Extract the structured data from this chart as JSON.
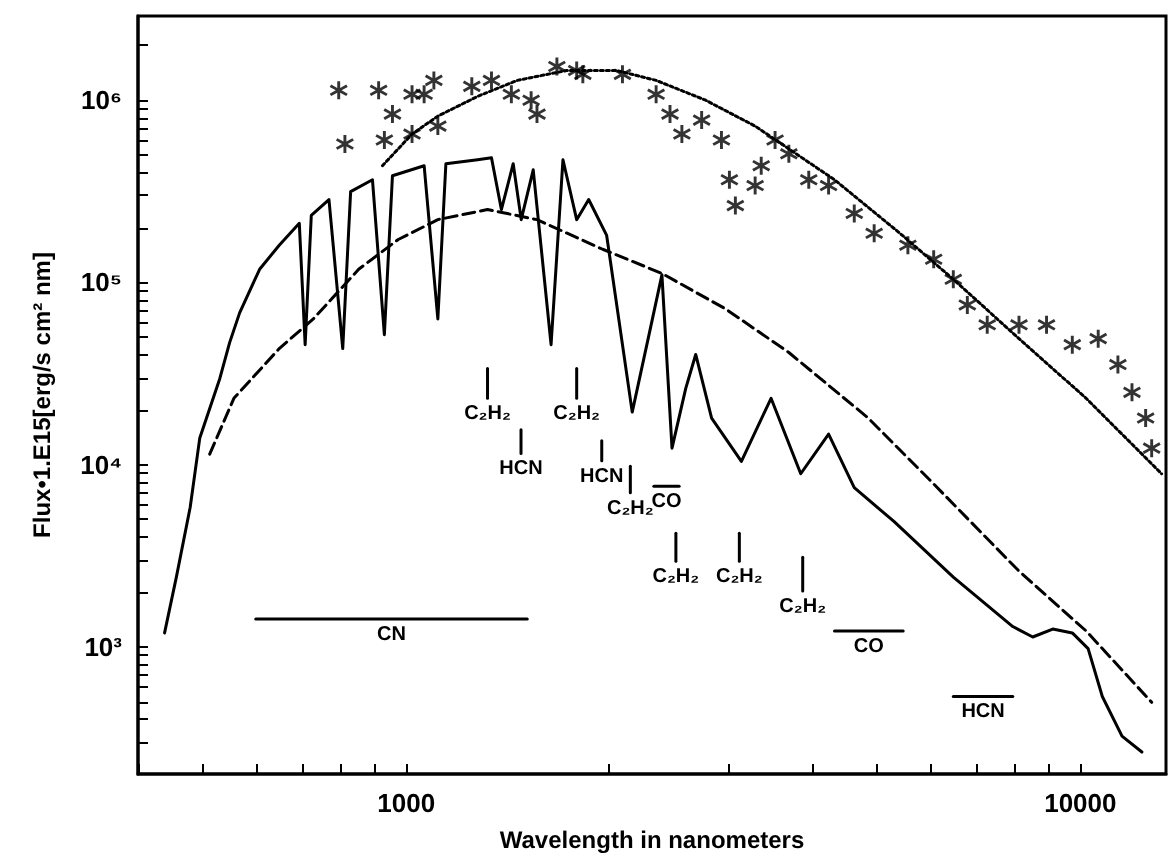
{
  "chart_data": {
    "type": "line",
    "xlabel": "Wavelength in nanometers",
    "ylabel": "Flux•1.E15[erg/s cm² nm]",
    "log": "xy",
    "grid": false,
    "legend": false,
    "xlim": [
      400,
      13400
    ],
    "ylim": [
      200,
      2900000
    ],
    "xticks": [
      {
        "value": 400,
        "label": null
      },
      {
        "value": 500,
        "label": null
      },
      {
        "value": 600,
        "label": null
      },
      {
        "value": 700,
        "label": null
      },
      {
        "value": 800,
        "label": null
      },
      {
        "value": 900,
        "label": null
      },
      1000,
      {
        "value": 2000,
        "label": null
      },
      {
        "value": 3000,
        "label": null
      },
      {
        "value": 4000,
        "label": null
      },
      {
        "value": 5000,
        "label": null
      },
      {
        "value": 6000,
        "label": null
      },
      {
        "value": 7000,
        "label": null
      },
      {
        "value": 8000,
        "label": null
      },
      {
        "value": 9000,
        "label": null
      },
      10000
    ],
    "yticks": [
      {
        "value": 300,
        "label": null
      },
      {
        "value": 400,
        "label": null
      },
      {
        "value": 500,
        "label": null
      },
      {
        "value": 600,
        "label": null
      },
      {
        "value": 700,
        "label": null
      },
      {
        "value": 800,
        "label": null
      },
      {
        "value": 900,
        "label": null
      },
      {
        "value": 1000,
        "label": "10³"
      },
      {
        "value": 2000,
        "label": null
      },
      {
        "value": 3000,
        "label": null
      },
      {
        "value": 4000,
        "label": null
      },
      {
        "value": 5000,
        "label": null
      },
      {
        "value": 6000,
        "label": null
      },
      {
        "value": 7000,
        "label": null
      },
      {
        "value": 8000,
        "label": null
      },
      {
        "value": 9000,
        "label": null
      },
      {
        "value": 10000,
        "label": "10⁴"
      },
      {
        "value": 20000,
        "label": null
      },
      {
        "value": 30000,
        "label": null
      },
      {
        "value": 40000,
        "label": null
      },
      {
        "value": 50000,
        "label": null
      },
      {
        "value": 60000,
        "label": null
      },
      {
        "value": 70000,
        "label": null
      },
      {
        "value": 80000,
        "label": null
      },
      {
        "value": 90000,
        "label": null
      },
      {
        "value": 100000,
        "label": "10⁵"
      },
      {
        "value": 200000,
        "label": null
      },
      {
        "value": 300000,
        "label": null
      },
      {
        "value": 400000,
        "label": null
      },
      {
        "value": 500000,
        "label": null
      },
      {
        "value": 600000,
        "label": null
      },
      {
        "value": 700000,
        "label": null
      },
      {
        "value": 800000,
        "label": null
      },
      {
        "value": 900000,
        "label": null
      },
      {
        "value": 1000000,
        "label": "10⁶"
      },
      {
        "value": 2000000,
        "label": null
      }
    ],
    "series": [
      {
        "color": "#000000",
        "line_style": "solid",
        "marker": "none",
        "x": [
          438,
          456,
          478,
          494,
          529,
          547,
          566,
          606,
          648,
          694,
          708,
          723,
          768,
          805,
          827,
          891,
          928,
          954,
          1063,
          1114,
          1145,
          1276,
          1338,
          1384,
          1441,
          1481,
          1543,
          1640,
          1708,
          1790,
          1865,
          1983,
          2164,
          2285,
          2395,
          2479,
          2598,
          2688,
          2838,
          3142,
          3477,
          3848,
          4232,
          4620,
          5290,
          6480,
          7940,
          8500,
          9100,
          9730,
          10270,
          10780,
          11530,
          12340
        ],
        "values": [
          1190,
          2410,
          5810,
          14000,
          29700,
          46700,
          68000,
          118000,
          160000,
          211000,
          45500,
          233000,
          285000,
          43300,
          315000,
          366000,
          51600,
          385000,
          437000,
          63000,
          448000,
          471000,
          483000,
          251000,
          448000,
          221000,
          415000,
          45500,
          471000,
          221000,
          285000,
          181000,
          19400,
          49100,
          110000,
          12300,
          26200,
          40200,
          18000,
          10400,
          23100,
          8900,
          14700,
          7460,
          4870,
          2410,
          1290,
          1130,
          1250,
          1190,
          975,
          533,
          323,
          264
        ]
      },
      {
        "color": "#000000",
        "line_style": "dashed",
        "marker": "none",
        "x": [
          511,
          555,
          648,
          728,
          850,
          973,
          1114,
          1320,
          1563,
          1956,
          2395,
          2975,
          3695,
          4845,
          5935,
          8110,
          10200,
          12760
        ],
        "values": [
          11400,
          23100,
          43300,
          63000,
          118000,
          172000,
          221000,
          251000,
          221000,
          152000,
          112000,
          71600,
          41200,
          18000,
          8460,
          2600,
          1220,
          495
        ]
      },
      {
        "color": "#000000",
        "line_style": "dotted",
        "marker": "none",
        "x": [
          922,
          1020,
          1114,
          1276,
          1461,
          1731,
          2050,
          2348,
          2781,
          3293,
          4318,
          5400,
          6480,
          8110,
          10200,
          13200
        ],
        "values": [
          437000,
          652000,
          818000,
          1050000,
          1285000,
          1457000,
          1457000,
          1285000,
          1000000,
          721000,
          366000,
          186000,
          104000,
          49100,
          23100,
          8900
        ]
      },
      {
        "type": "scatter",
        "color": "#000000",
        "marker": "star",
        "x": [
          794,
          910,
          811,
          928,
          954,
          1020,
          1020,
          1063,
          1099,
          1114,
          1251,
          1338,
          1432,
          1532,
          1563,
          1673,
          1790,
          1828,
          2093,
          2348,
          2462,
          2564,
          2743,
          2935,
          3016,
          3078,
          3293,
          3362,
          3525,
          3695,
          3955,
          4232,
          4620,
          4945,
          5549,
          6060,
          6480,
          6798,
          7276,
          8110,
          8910,
          9730,
          10630,
          11370,
          11930,
          12500,
          12760
        ],
        "values": [
          1134000,
          1134000,
          575000,
          605000,
          839000,
          1078000,
          652000,
          1078000,
          1285000,
          721000,
          1192000,
          1285000,
          1078000,
          1000000,
          839000,
          1532000,
          1457000,
          1387000,
          1387000,
          1078000,
          839000,
          652000,
          778000,
          605000,
          366000,
          264000,
          340000,
          437000,
          605000,
          508000,
          366000,
          340000,
          239000,
          186000,
          160000,
          134000,
          104000,
          75200,
          58500,
          58500,
          58500,
          45500,
          49100,
          35400,
          24900,
          18000,
          12300
        ]
      },
      {
        "name": "CN",
        "color": "#000000",
        "line_style": "solid",
        "marker": "none",
        "x": [
          598,
          1512
        ],
        "values": [
          1420,
          1420
        ]
      },
      {
        "name": "CO",
        "color": "#000000",
        "line_style": "solid",
        "marker": "none",
        "x": [
          4318,
          5460
        ],
        "values": [
          1220,
          1220
        ]
      },
      {
        "name": "HCN",
        "color": "#000000",
        "line_style": "solid",
        "marker": "none",
        "x": [
          6480,
          7940
        ],
        "values": [
          533,
          533
        ]
      },
      {
        "name": "CO",
        "color": "#000000",
        "line_style": "solid",
        "marker": "none",
        "x": [
          2330,
          2540
        ],
        "values": [
          7600,
          7600
        ]
      },
      {
        "name": "C₂H₂",
        "color": "#000000",
        "line_style": "solid",
        "marker": "none",
        "x": [
          1320,
          1320
        ],
        "values": [
          33700,
          23100
        ]
      },
      {
        "name": "HCN",
        "color": "#000000",
        "line_style": "solid",
        "marker": "none",
        "x": [
          1480,
          1480
        ],
        "values": [
          15500,
          11500
        ]
      },
      {
        "name": "C₂H₂",
        "color": "#000000",
        "line_style": "solid",
        "marker": "none",
        "x": [
          1790,
          1790
        ],
        "values": [
          33700,
          23100
        ]
      },
      {
        "name": "HCN",
        "color": "#000000",
        "line_style": "solid",
        "marker": "none",
        "x": [
          1950,
          1950
        ],
        "values": [
          13500,
          10500
        ]
      },
      {
        "name": "C₂H₂",
        "color": "#000000",
        "line_style": "solid",
        "marker": "none",
        "x": [
          2150,
          2150
        ],
        "values": [
          9800,
          7000
        ]
      },
      {
        "name": "C₂H₂",
        "color": "#000000",
        "line_style": "solid",
        "marker": "none",
        "x": [
          2512,
          2512
        ],
        "values": [
          4190,
          2940
        ]
      },
      {
        "name": "C₂H₂",
        "color": "#000000",
        "line_style": "solid",
        "marker": "none",
        "x": [
          3120,
          3120
        ],
        "values": [
          4190,
          2940
        ]
      },
      {
        "name": "C₂H₂",
        "color": "#000000",
        "line_style": "solid",
        "marker": "none",
        "x": [
          3874,
          3874
        ],
        "values": [
          3100,
          2020
        ]
      }
    ]
  }
}
